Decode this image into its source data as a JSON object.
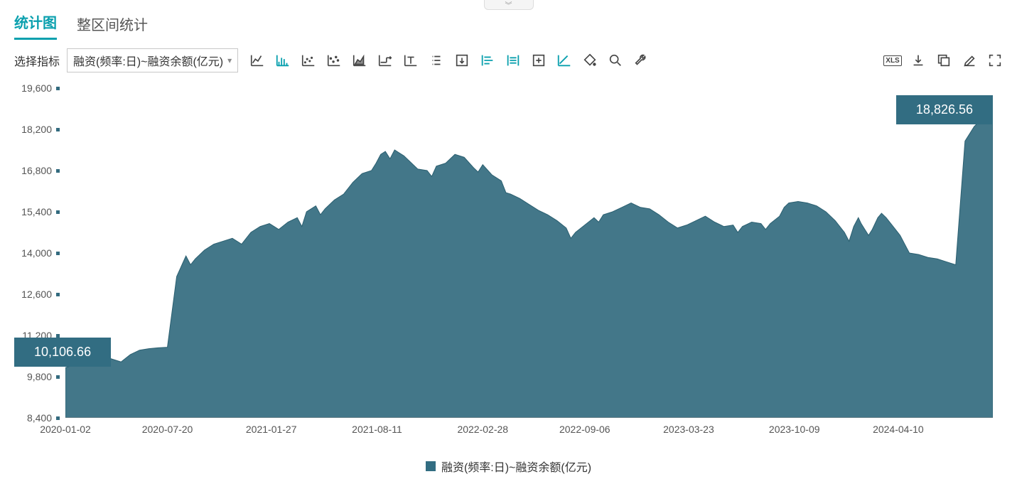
{
  "tabs": {
    "stat_chart": "统计图",
    "range_stat": "整区间统计",
    "active": 0
  },
  "selector": {
    "label": "选择指标",
    "selected": "融资(频率:日)~融资余额(亿元)"
  },
  "legend": {
    "series_label": "融资(频率:日)~融资余额(亿元)",
    "color": "#326d82"
  },
  "callouts": {
    "start_value": "10,106.66",
    "end_value": "18,826.56",
    "background": "#326d82",
    "text_color": "#ffffff"
  },
  "watermark": "",
  "chart": {
    "type": "area",
    "background_color": "#ffffff",
    "series_fill": "#336b7f",
    "series_stroke": "#2b5f70",
    "opacity": 0.92,
    "y_axis": {
      "min": 8400,
      "max": 19600,
      "tick_step": 1400,
      "ticks": [
        8400,
        9800,
        11200,
        12600,
        14000,
        15400,
        16800,
        18200,
        19600
      ],
      "tick_labels": [
        "8,400",
        "9,800",
        "11,200",
        "12,600",
        "14,000",
        "15,400",
        "16,800",
        "18,200",
        "19,600"
      ],
      "label_color": "#555555",
      "label_fontsize": 14
    },
    "x_axis": {
      "ticks_pos": [
        0.0,
        0.11,
        0.222,
        0.336,
        0.45,
        0.56,
        0.672,
        0.786,
        0.898,
        1.0
      ],
      "tick_labels": [
        "2020-01-02",
        "2020-07-20",
        "2021-01-27",
        "2021-08-11",
        "2022-02-28",
        "2022-09-06",
        "2023-03-23",
        "2023-10-09",
        "2024-04-10",
        ""
      ],
      "label_color": "#555555",
      "label_fontsize": 14
    },
    "data": {
      "x": [
        0.0,
        0.01,
        0.02,
        0.03,
        0.04,
        0.05,
        0.06,
        0.07,
        0.08,
        0.09,
        0.1,
        0.11,
        0.115,
        0.12,
        0.13,
        0.135,
        0.14,
        0.15,
        0.16,
        0.17,
        0.18,
        0.19,
        0.2,
        0.21,
        0.22,
        0.23,
        0.24,
        0.25,
        0.255,
        0.26,
        0.27,
        0.275,
        0.28,
        0.29,
        0.3,
        0.31,
        0.32,
        0.33,
        0.335,
        0.34,
        0.345,
        0.35,
        0.355,
        0.36,
        0.365,
        0.37,
        0.38,
        0.39,
        0.395,
        0.4,
        0.41,
        0.42,
        0.43,
        0.44,
        0.445,
        0.45,
        0.46,
        0.47,
        0.475,
        0.48,
        0.49,
        0.5,
        0.51,
        0.52,
        0.53,
        0.54,
        0.545,
        0.55,
        0.56,
        0.57,
        0.575,
        0.58,
        0.59,
        0.6,
        0.61,
        0.62,
        0.63,
        0.64,
        0.65,
        0.66,
        0.67,
        0.68,
        0.69,
        0.7,
        0.71,
        0.72,
        0.725,
        0.73,
        0.74,
        0.75,
        0.755,
        0.76,
        0.77,
        0.775,
        0.78,
        0.79,
        0.8,
        0.81,
        0.82,
        0.83,
        0.84,
        0.845,
        0.85,
        0.855,
        0.858,
        0.862,
        0.866,
        0.87,
        0.876,
        0.88,
        0.885,
        0.89,
        0.895,
        0.9,
        0.905,
        0.91,
        0.92,
        0.93,
        0.94,
        0.95,
        0.96,
        0.97,
        0.98,
        0.99,
        0.995,
        1.0
      ],
      "y": [
        10106,
        10200,
        10350,
        10450,
        10520,
        10400,
        10300,
        10550,
        10700,
        10750,
        10780,
        10800,
        12000,
        13200,
        13900,
        13600,
        13800,
        14100,
        14300,
        14400,
        14500,
        14300,
        14700,
        14900,
        15000,
        14800,
        15050,
        15200,
        14900,
        15400,
        15600,
        15300,
        15500,
        15800,
        16000,
        16400,
        16700,
        16800,
        17050,
        17350,
        17450,
        17200,
        17500,
        17400,
        17300,
        17150,
        16850,
        16800,
        16600,
        16950,
        17050,
        17350,
        17250,
        16900,
        16750,
        17000,
        16650,
        16450,
        16050,
        16000,
        15850,
        15650,
        15450,
        15300,
        15100,
        14850,
        14500,
        14700,
        14950,
        15200,
        15050,
        15300,
        15400,
        15550,
        15700,
        15550,
        15500,
        15300,
        15050,
        14850,
        14950,
        15100,
        15250,
        15050,
        14900,
        14950,
        14700,
        14900,
        15050,
        15000,
        14800,
        15000,
        15250,
        15550,
        15700,
        15750,
        15700,
        15600,
        15400,
        15100,
        14700,
        14400,
        14900,
        15200,
        15000,
        14800,
        14600,
        14800,
        15200,
        15350,
        15200,
        15000,
        14800,
        14600,
        14300,
        14000,
        13950,
        13850,
        13800,
        13700,
        13600,
        17800,
        18300,
        18600,
        18550,
        18826
      ]
    }
  }
}
